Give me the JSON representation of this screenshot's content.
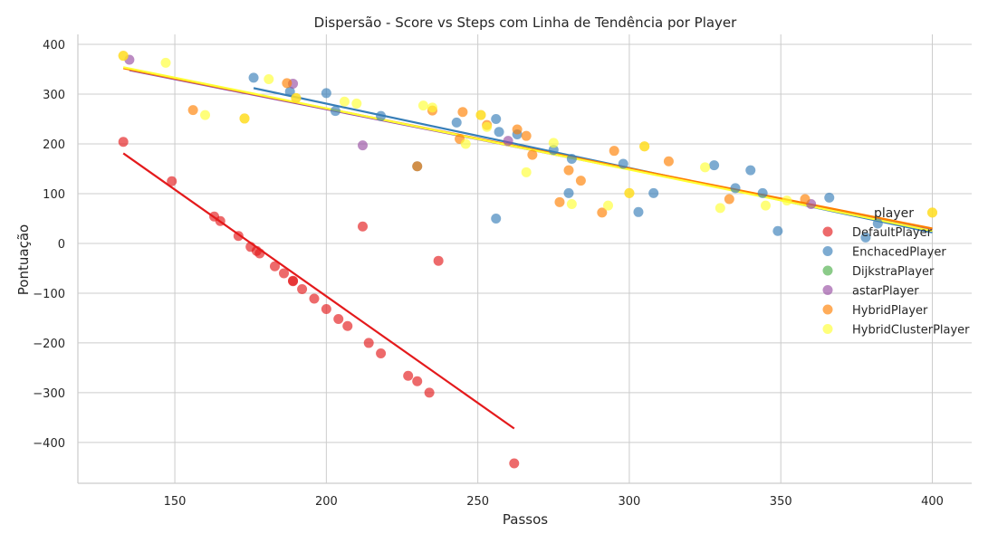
{
  "chart_data": {
    "type": "scatter",
    "title": "Dispersão - Score vs Steps com Linha de Tendência por Player",
    "xlabel": "Passos",
    "ylabel": "Pontuação",
    "xlim": [
      118,
      413
    ],
    "ylim": [
      -482,
      420
    ],
    "xticks": [
      150,
      200,
      250,
      300,
      350,
      400
    ],
    "yticks": [
      400,
      300,
      200,
      100,
      0,
      -100,
      -200,
      -300,
      -400
    ],
    "grid": true,
    "legend_title": "player",
    "legend_position": "right",
    "series": [
      {
        "name": "DefaultPlayer",
        "color": "#e41a1c",
        "points": [
          [
            133,
            204
          ],
          [
            149,
            125
          ],
          [
            163,
            54
          ],
          [
            165,
            45
          ],
          [
            171,
            15
          ],
          [
            175,
            -7
          ],
          [
            177,
            -15
          ],
          [
            178,
            -20
          ],
          [
            183,
            -46
          ],
          [
            186,
            -60
          ],
          [
            189,
            -75
          ],
          [
            189,
            -76
          ],
          [
            192,
            -92
          ],
          [
            196,
            -111
          ],
          [
            200,
            -132
          ],
          [
            204,
            -152
          ],
          [
            207,
            -166
          ],
          [
            214,
            -200
          ],
          [
            218,
            -221
          ],
          [
            227,
            -266
          ],
          [
            230,
            -277
          ],
          [
            234,
            -300
          ],
          [
            212,
            34
          ],
          [
            237,
            -35
          ],
          [
            262,
            -442
          ]
        ],
        "trend": [
          [
            133,
            181
          ],
          [
            262,
            -372
          ]
        ]
      },
      {
        "name": "EnchacedPlayer",
        "color": "#377eb8",
        "points": [
          [
            176,
            333
          ],
          [
            188,
            305
          ],
          [
            200,
            302
          ],
          [
            203,
            266
          ],
          [
            218,
            256
          ],
          [
            243,
            243
          ],
          [
            256,
            250
          ],
          [
            257,
            224
          ],
          [
            263,
            219
          ],
          [
            275,
            188
          ],
          [
            281,
            170
          ],
          [
            280,
            101
          ],
          [
            298,
            160
          ],
          [
            303,
            63
          ],
          [
            308,
            101
          ],
          [
            328,
            157
          ],
          [
            335,
            111
          ],
          [
            340,
            147
          ],
          [
            344,
            101
          ],
          [
            349,
            25
          ],
          [
            366,
            92
          ],
          [
            378,
            12
          ],
          [
            382,
            40
          ],
          [
            256,
            50
          ],
          [
            230,
            155
          ]
        ],
        "trend": [
          [
            176,
            312
          ],
          [
            400,
            22
          ]
        ]
      },
      {
        "name": "DijkstraPlayer",
        "color": "#4daf4a",
        "points": [],
        "trend": []
      },
      {
        "name": "astarPlayer",
        "color": "#984ea3",
        "points": [
          [
            135,
            369
          ],
          [
            189,
            321
          ],
          [
            212,
            197
          ],
          [
            260,
            206
          ],
          [
            360,
            79
          ]
        ],
        "trend": [
          [
            135,
            348
          ],
          [
            400,
            28
          ]
        ]
      },
      {
        "name": "HybridPlayer",
        "color": "#ff7f00",
        "points": [
          [
            133,
            377
          ],
          [
            156,
            268
          ],
          [
            173,
            251
          ],
          [
            187,
            322
          ],
          [
            190,
            292
          ],
          [
            230,
            155
          ],
          [
            235,
            267
          ],
          [
            244,
            210
          ],
          [
            245,
            264
          ],
          [
            251,
            258
          ],
          [
            253,
            238
          ],
          [
            263,
            229
          ],
          [
            266,
            216
          ],
          [
            268,
            178
          ],
          [
            277,
            83
          ],
          [
            280,
            147
          ],
          [
            284,
            126
          ],
          [
            291,
            62
          ],
          [
            295,
            186
          ],
          [
            300,
            101
          ],
          [
            305,
            195
          ],
          [
            313,
            165
          ],
          [
            333,
            89
          ],
          [
            358,
            89
          ],
          [
            400,
            62
          ]
        ],
        "trend": [
          [
            133,
            352
          ],
          [
            400,
            30
          ]
        ]
      },
      {
        "name": "HybridClusterPlayer",
        "color": "#ffff33",
        "points": [
          [
            133,
            377
          ],
          [
            147,
            363
          ],
          [
            160,
            258
          ],
          [
            173,
            251
          ],
          [
            181,
            330
          ],
          [
            190,
            292
          ],
          [
            206,
            285
          ],
          [
            210,
            281
          ],
          [
            232,
            277
          ],
          [
            235,
            273
          ],
          [
            246,
            200
          ],
          [
            251,
            258
          ],
          [
            253,
            234
          ],
          [
            266,
            143
          ],
          [
            275,
            202
          ],
          [
            281,
            79
          ],
          [
            293,
            76
          ],
          [
            300,
            101
          ],
          [
            305,
            195
          ],
          [
            325,
            153
          ],
          [
            330,
            71
          ],
          [
            345,
            76
          ],
          [
            352,
            86
          ],
          [
            400,
            62
          ]
        ],
        "trend": [
          [
            133,
            354
          ],
          [
            400,
            25
          ]
        ]
      }
    ]
  }
}
